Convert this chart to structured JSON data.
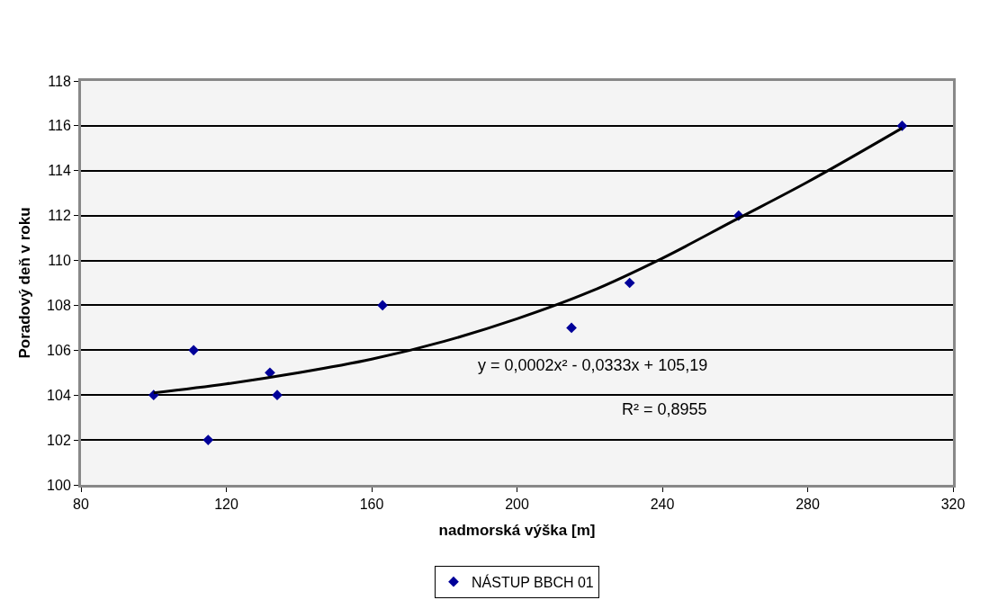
{
  "chart_data": {
    "type": "scatter",
    "xlabel": "nadmorská výška [m]",
    "ylabel": "Poradový deň v roku",
    "xlim": [
      80,
      320
    ],
    "xticks": [
      80,
      120,
      160,
      200,
      240,
      280,
      320
    ],
    "ylim": [
      100,
      118
    ],
    "yticks": [
      100,
      102,
      104,
      106,
      108,
      110,
      112,
      114,
      116,
      118
    ],
    "grid": "y",
    "legend": "bottom",
    "series": [
      {
        "name": "NÁSTUP BBCH 01",
        "marker": "diamond",
        "color": "#000099",
        "x": [
          100,
          111,
          115,
          132,
          134,
          163,
          215,
          231,
          261,
          306
        ],
        "values": [
          104,
          106,
          102,
          105,
          104,
          108,
          107,
          109,
          112,
          116
        ]
      },
      {
        "type": "line",
        "color": "#000000",
        "line_style": "solid",
        "x": [
          100,
          120,
          140,
          160,
          180,
          200,
          220,
          240,
          260,
          280,
          306
        ],
        "values": [
          104.1,
          104.5,
          105.0,
          105.6,
          106.4,
          107.4,
          108.6,
          110.1,
          111.8,
          113.5,
          115.9
        ]
      }
    ],
    "annotations": [
      "y = 0,0002x² - 0,0333x + 105,19",
      "R² = 0,8955"
    ]
  }
}
